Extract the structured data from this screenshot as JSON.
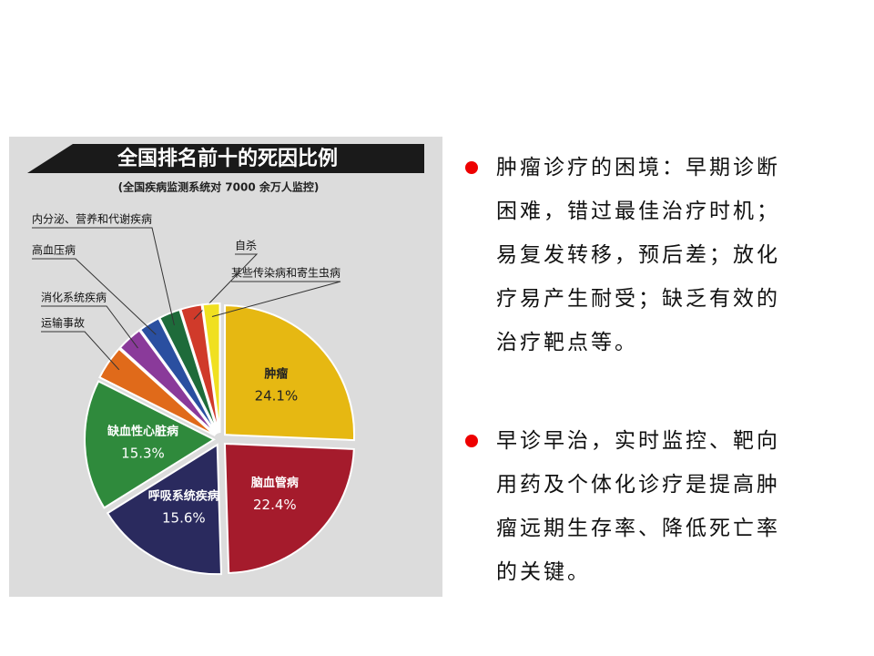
{
  "chart_data": {
    "type": "pie",
    "title": "全国排名前十的死因比例",
    "subtitle": "(全国疾病监测系统对 7000 余万人监控)",
    "categories": [
      "肿瘤",
      "脑血管病",
      "呼吸系统疾病",
      "缺血性心脏病",
      "运输事故",
      "消化系统疾病",
      "高血压病",
      "内分泌、营养和代谢疾病",
      "自杀",
      "某些传染病和寄生虫病"
    ],
    "values": [
      24.1,
      22.4,
      15.6,
      15.3,
      4,
      3,
      2.5,
      2.5,
      2.5,
      2
    ],
    "value_labels": [
      "24.1%",
      "22.4%",
      "15.6%",
      "15.3%",
      null,
      null,
      null,
      null,
      null,
      null
    ],
    "colors": [
      "#e6b812",
      "#a51b2c",
      "#2a2a5e",
      "#2f8a3c",
      "#e06a1a",
      "#8a3a9a",
      "#2a4fa0",
      "#1e6b3a",
      "#d03a2a",
      "#f0e020"
    ]
  },
  "bullets": [
    "肿瘤诊疗的困境：早期诊断困难，错过最佳治疗时机；易复发转移，预后差；放化疗易产生耐受；缺乏有效的治疗靶点等。",
    "早诊早治，实时监控、靶向用药及个体化诊疗是提高肿瘤远期生存率、降低死亡率的关键。"
  ]
}
